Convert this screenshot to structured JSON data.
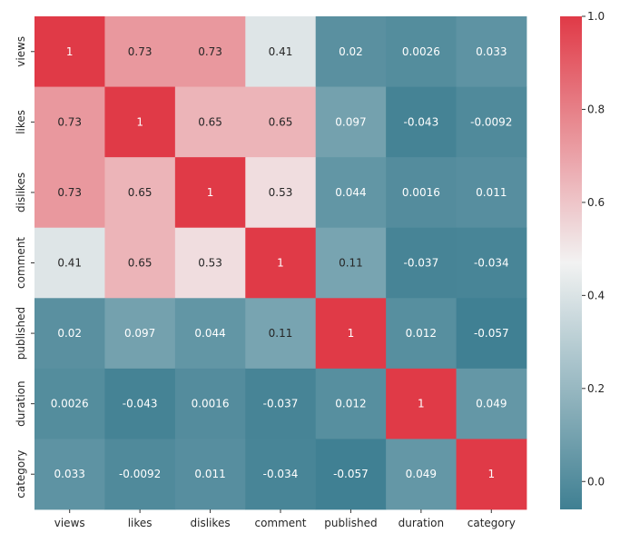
{
  "chart_data": {
    "type": "heatmap",
    "title": "",
    "xlabel": "",
    "ylabel": "",
    "row_labels": [
      "views",
      "likes",
      "dislikes",
      "comment",
      "published",
      "duration",
      "category"
    ],
    "col_labels": [
      "views",
      "likes",
      "dislikes",
      "comment",
      "published",
      "duration",
      "category"
    ],
    "values": [
      [
        1,
        0.73,
        0.73,
        0.41,
        0.02,
        0.0026,
        0.033
      ],
      [
        0.73,
        1,
        0.65,
        0.65,
        0.097,
        -0.043,
        -0.0092
      ],
      [
        0.73,
        0.65,
        1,
        0.53,
        0.044,
        0.0016,
        0.011
      ],
      [
        0.41,
        0.65,
        0.53,
        1,
        0.11,
        -0.037,
        -0.034
      ],
      [
        0.02,
        0.097,
        0.044,
        0.11,
        1,
        0.012,
        -0.057
      ],
      [
        0.0026,
        -0.043,
        0.0016,
        -0.037,
        0.012,
        1,
        0.049
      ],
      [
        0.033,
        -0.0092,
        0.011,
        -0.034,
        -0.057,
        0.049,
        1
      ]
    ],
    "cell_labels": [
      [
        "1",
        "0.73",
        "0.73",
        "0.41",
        "0.02",
        "0.0026",
        "0.033"
      ],
      [
        "0.73",
        "1",
        "0.65",
        "0.65",
        "0.097",
        "-0.043",
        "-0.0092"
      ],
      [
        "0.73",
        "0.65",
        "1",
        "0.53",
        "0.044",
        "0.0016",
        "0.011"
      ],
      [
        "0.41",
        "0.65",
        "0.53",
        "1",
        "0.11",
        "-0.037",
        "-0.034"
      ],
      [
        "0.02",
        "0.097",
        "0.044",
        "0.11",
        "1",
        "0.012",
        "-0.057"
      ],
      [
        "0.0026",
        "-0.043",
        "0.0016",
        "-0.037",
        "0.012",
        "1",
        "0.049"
      ],
      [
        "0.033",
        "-0.0092",
        "0.011",
        "-0.034",
        "-0.057",
        "0.049",
        "1"
      ]
    ],
    "colorbar": {
      "vmin": -0.06,
      "vmax": 1.0,
      "ticks": [
        0.0,
        0.2,
        0.4,
        0.6,
        0.8,
        1.0
      ],
      "tick_labels": [
        "0.0",
        "0.2",
        "0.4",
        "0.6",
        "0.8",
        "1.0"
      ]
    },
    "colormap": {
      "low": "#3f7f92",
      "mid": "#f2f2f2",
      "high": "#e03a47"
    },
    "annotation_colors": {
      "dark": "#262626",
      "light": "#ffffff"
    }
  }
}
